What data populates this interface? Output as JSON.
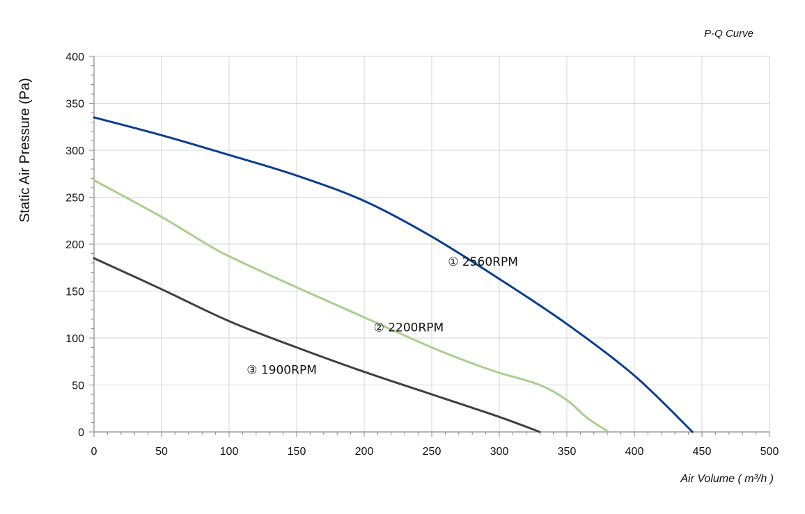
{
  "chart_data": {
    "type": "line",
    "title": "P-Q Curve",
    "xlabel": "Air Volume ( m³/h )",
    "ylabel": "Static Air Pressure  (Pa)",
    "xlim": [
      0,
      500
    ],
    "ylim": [
      0,
      400
    ],
    "x_ticks": [
      "0",
      "50",
      "100",
      "150",
      "200",
      "250",
      "300",
      "350",
      "400",
      "450",
      "500"
    ],
    "y_ticks": [
      "0",
      "50",
      "100",
      "150",
      "200",
      "250",
      "300",
      "350",
      "400"
    ],
    "grid": true,
    "series": [
      {
        "name": "① 2560RPM",
        "color": "#0a3d91",
        "points": [
          [
            0,
            335
          ],
          [
            50,
            316
          ],
          [
            100,
            295
          ],
          [
            150,
            273
          ],
          [
            200,
            246
          ],
          [
            250,
            208
          ],
          [
            300,
            163
          ],
          [
            350,
            115
          ],
          [
            400,
            60
          ],
          [
            443,
            0
          ]
        ]
      },
      {
        "name": "② 2200RPM",
        "color": "#a8d08d",
        "points": [
          [
            0,
            268
          ],
          [
            50,
            229
          ],
          [
            80,
            203
          ],
          [
            100,
            187
          ],
          [
            150,
            154
          ],
          [
            200,
            122
          ],
          [
            250,
            90
          ],
          [
            280,
            73
          ],
          [
            300,
            63
          ],
          [
            330,
            50
          ],
          [
            350,
            34
          ],
          [
            365,
            15
          ],
          [
            381,
            0
          ]
        ]
      },
      {
        "name": "③ 1900RPM",
        "color": "#404040",
        "points": [
          [
            0,
            185
          ],
          [
            50,
            152
          ],
          [
            100,
            118
          ],
          [
            150,
            90
          ],
          [
            200,
            64
          ],
          [
            250,
            40
          ],
          [
            300,
            16
          ],
          [
            330,
            0
          ]
        ]
      }
    ]
  }
}
